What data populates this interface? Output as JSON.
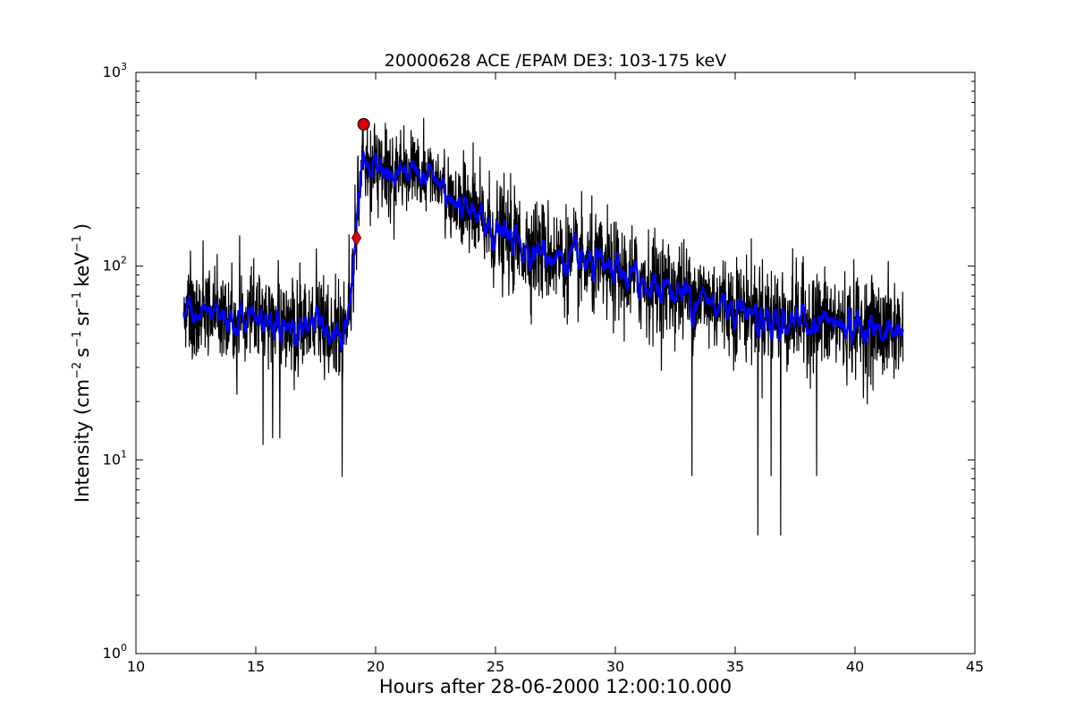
{
  "chart_data": {
    "type": "line",
    "title": "20000628 ACE /EPAM DE3: 103-175 keV",
    "xlabel": "Hours after 28-06-2000 12:00:10.000",
    "ylabel": {
      "prefix": "Intensity (cm",
      "cm_exp": "−2",
      "s_unit": "s",
      "s_exp": "−1",
      "sr_unit": "sr",
      "sr_exp": "−1",
      "kev_unit": "keV",
      "kev_exp": "−1",
      "suffix": ")"
    },
    "xlim": [
      10,
      45
    ],
    "ylim": [
      1,
      1000
    ],
    "yscale": "log",
    "x_ticks": [
      "10",
      "15",
      "20",
      "25",
      "30",
      "35",
      "40",
      "45"
    ],
    "y_ticks": [
      {
        "base": "10",
        "exp": "0"
      },
      {
        "base": "10",
        "exp": "1"
      },
      {
        "base": "10",
        "exp": "2"
      },
      {
        "base": "10",
        "exp": "3"
      }
    ],
    "grid": false,
    "series": [
      {
        "role": "raw intensity",
        "color": "#000000",
        "x_start": 12.0,
        "x_end": 42.0,
        "profile": [
          [
            12.0,
            60
          ],
          [
            13.0,
            58
          ],
          [
            14.0,
            55
          ],
          [
            15.0,
            55
          ],
          [
            16.0,
            52
          ],
          [
            17.0,
            52
          ],
          [
            18.0,
            50
          ],
          [
            18.8,
            48
          ],
          [
            19.1,
            120
          ],
          [
            19.4,
            330
          ],
          [
            20.0,
            320
          ],
          [
            21.0,
            310
          ],
          [
            22.0,
            300
          ],
          [
            22.5,
            290
          ],
          [
            23.0,
            230
          ],
          [
            24.0,
            180
          ],
          [
            25.0,
            150
          ],
          [
            26.0,
            130
          ],
          [
            27.0,
            118
          ],
          [
            28.0,
            108
          ],
          [
            29.0,
            100
          ],
          [
            30.0,
            92
          ],
          [
            31.0,
            84
          ],
          [
            32.0,
            78
          ],
          [
            33.0,
            72
          ],
          [
            34.0,
            66
          ],
          [
            35.0,
            62
          ],
          [
            36.0,
            58
          ],
          [
            37.0,
            55
          ],
          [
            38.0,
            53
          ],
          [
            39.0,
            51
          ],
          [
            40.0,
            49
          ],
          [
            41.0,
            47
          ],
          [
            42.0,
            46
          ]
        ],
        "dips": [
          [
            15.3,
            12
          ],
          [
            15.7,
            13
          ],
          [
            16.0,
            13
          ],
          [
            18.6,
            8.2
          ],
          [
            33.2,
            8.3
          ],
          [
            35.95,
            4.1
          ],
          [
            36.5,
            8.3
          ],
          [
            36.9,
            4.1
          ],
          [
            38.4,
            8.3
          ]
        ],
        "spikes": [
          [
            22.0,
            580
          ],
          [
            20.6,
            450
          ],
          [
            12.8,
            135
          ]
        ]
      },
      {
        "role": "smoothed intensity",
        "color": "#0000ff"
      }
    ],
    "markers": [
      {
        "shape": "circle",
        "x": 19.5,
        "y": 540,
        "color": "#dd0000"
      },
      {
        "shape": "diamond",
        "x": 19.2,
        "y": 140,
        "color": "#dd0000"
      }
    ]
  }
}
